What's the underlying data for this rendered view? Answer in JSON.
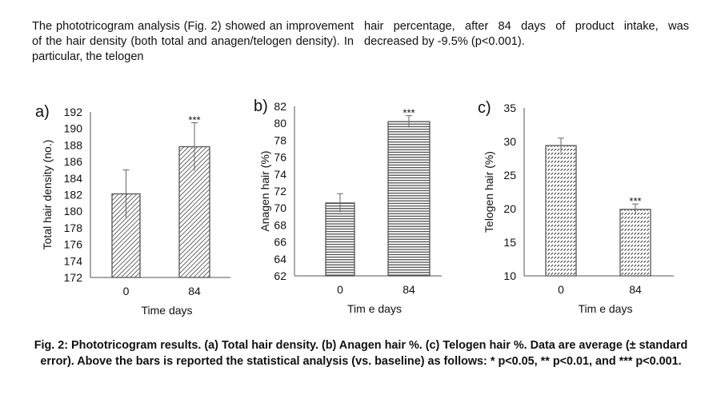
{
  "body_text": {
    "left_column": "The phototricogram analysis (Fig. 2) showed an improvement of the hair density (both total and anagen/telogen density). In particular, the telogen",
    "right_column": "hair percentage, after 84 days of product intake, was decreased by -9.5% (p<0.001)."
  },
  "chart_data": [
    {
      "type": "bar",
      "panel": "a)",
      "categories": [
        "0",
        "84"
      ],
      "values": [
        182.1,
        187.8
      ],
      "errors": [
        2.9,
        2.9
      ],
      "significance": [
        "",
        "***"
      ],
      "ylabel": "Total hair density (no.)",
      "xlabel": "Time days",
      "ylim": [
        172,
        192
      ],
      "yticks": [
        "172",
        "174",
        "176",
        "178",
        "180",
        "182",
        "184",
        "186",
        "188",
        "190",
        "192"
      ],
      "pattern": "diagonal"
    },
    {
      "type": "bar",
      "panel": "b)",
      "categories": [
        "0",
        "84"
      ],
      "values": [
        70.6,
        80.2
      ],
      "errors": [
        1.1,
        0.7
      ],
      "significance": [
        "",
        "***"
      ],
      "ylabel": "Anagen hair (%)",
      "xlabel": "Tim e days",
      "ylim": [
        62,
        82
      ],
      "yticks": [
        "62",
        "64",
        "66",
        "68",
        "70",
        "72",
        "74",
        "76",
        "78",
        "80",
        "82"
      ],
      "pattern": "horizontal"
    },
    {
      "type": "bar",
      "panel": "c)",
      "categories": [
        "0",
        "84"
      ],
      "values": [
        29.4,
        19.9
      ],
      "errors": [
        1.1,
        0.8
      ],
      "significance": [
        "",
        "***"
      ],
      "ylabel": "Telogen hair (%)",
      "xlabel": "Tim e days",
      "ylim": [
        10,
        35
      ],
      "yticks": [
        "10",
        "15",
        "20",
        "25",
        "30",
        "35"
      ],
      "pattern": "dashed-diagonal"
    }
  ],
  "caption": "Fig. 2: Phototricogram results. (a) Total hair density. (b) Anagen hair %. (c) Telogen hair %. Data are average (± standard error). Above the bars is reported the statistical analysis (vs. baseline) as follows: * p<0.05, ** p<0.01, and *** p<0.001."
}
